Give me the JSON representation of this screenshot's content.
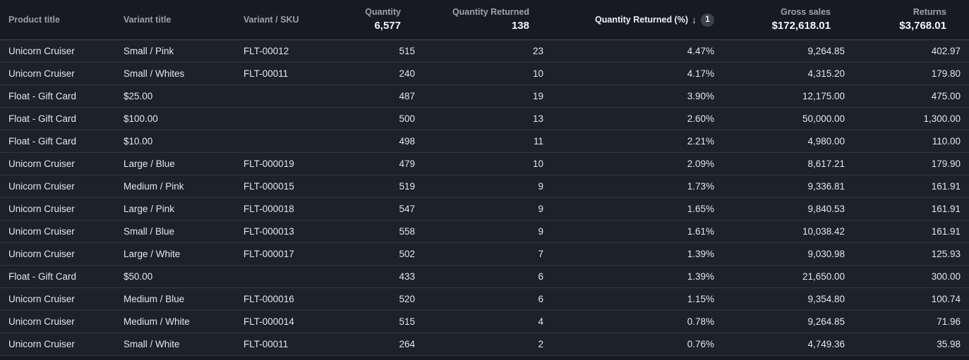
{
  "table": {
    "headers": {
      "product_title": "Product title",
      "variant_title": "Variant title",
      "variant_sku": "Variant / SKU",
      "quantity": {
        "label": "Quantity",
        "total": "6,577"
      },
      "quantity_returned": {
        "label": "Quantity Returned",
        "total": "138"
      },
      "quantity_returned_pct": {
        "label": "Quantity Returned (%)",
        "sort_icon": "↓",
        "sort_direction": "descending",
        "sort_badge": "1"
      },
      "gross_sales": {
        "label": "Gross sales",
        "total": "$172,618.01"
      },
      "returns": {
        "label": "Returns",
        "total": "$3,768.01"
      }
    },
    "rows": [
      {
        "product_title": "Unicorn Cruiser",
        "variant_title": "Small / Pink",
        "variant_sku": "FLT-00012",
        "quantity": "515",
        "quantity_returned": "23",
        "quantity_returned_pct": "4.47%",
        "gross_sales": "9,264.85",
        "returns": "402.97"
      },
      {
        "product_title": "Unicorn Cruiser",
        "variant_title": "Small / Whites",
        "variant_sku": "FLT-00011",
        "quantity": "240",
        "quantity_returned": "10",
        "quantity_returned_pct": "4.17%",
        "gross_sales": "4,315.20",
        "returns": "179.80"
      },
      {
        "product_title": "Float - Gift Card",
        "variant_title": "$25.00",
        "variant_sku": "",
        "quantity": "487",
        "quantity_returned": "19",
        "quantity_returned_pct": "3.90%",
        "gross_sales": "12,175.00",
        "returns": "475.00"
      },
      {
        "product_title": "Float - Gift Card",
        "variant_title": "$100.00",
        "variant_sku": "",
        "quantity": "500",
        "quantity_returned": "13",
        "quantity_returned_pct": "2.60%",
        "gross_sales": "50,000.00",
        "returns": "1,300.00"
      },
      {
        "product_title": "Float - Gift Card",
        "variant_title": "$10.00",
        "variant_sku": "",
        "quantity": "498",
        "quantity_returned": "11",
        "quantity_returned_pct": "2.21%",
        "gross_sales": "4,980.00",
        "returns": "110.00"
      },
      {
        "product_title": "Unicorn Cruiser",
        "variant_title": "Large / Blue",
        "variant_sku": "FLT-000019",
        "quantity": "479",
        "quantity_returned": "10",
        "quantity_returned_pct": "2.09%",
        "gross_sales": "8,617.21",
        "returns": "179.90"
      },
      {
        "product_title": "Unicorn Cruiser",
        "variant_title": "Medium / Pink",
        "variant_sku": "FLT-000015",
        "quantity": "519",
        "quantity_returned": "9",
        "quantity_returned_pct": "1.73%",
        "gross_sales": "9,336.81",
        "returns": "161.91"
      },
      {
        "product_title": "Unicorn Cruiser",
        "variant_title": "Large / Pink",
        "variant_sku": "FLT-000018",
        "quantity": "547",
        "quantity_returned": "9",
        "quantity_returned_pct": "1.65%",
        "gross_sales": "9,840.53",
        "returns": "161.91"
      },
      {
        "product_title": "Unicorn Cruiser",
        "variant_title": "Small / Blue",
        "variant_sku": "FLT-000013",
        "quantity": "558",
        "quantity_returned": "9",
        "quantity_returned_pct": "1.61%",
        "gross_sales": "10,038.42",
        "returns": "161.91"
      },
      {
        "product_title": "Unicorn Cruiser",
        "variant_title": "Large / White",
        "variant_sku": "FLT-000017",
        "quantity": "502",
        "quantity_returned": "7",
        "quantity_returned_pct": "1.39%",
        "gross_sales": "9,030.98",
        "returns": "125.93"
      },
      {
        "product_title": "Float - Gift Card",
        "variant_title": "$50.00",
        "variant_sku": "",
        "quantity": "433",
        "quantity_returned": "6",
        "quantity_returned_pct": "1.39%",
        "gross_sales": "21,650.00",
        "returns": "300.00"
      },
      {
        "product_title": "Unicorn Cruiser",
        "variant_title": "Medium / Blue",
        "variant_sku": "FLT-000016",
        "quantity": "520",
        "quantity_returned": "6",
        "quantity_returned_pct": "1.15%",
        "gross_sales": "9,354.80",
        "returns": "100.74"
      },
      {
        "product_title": "Unicorn Cruiser",
        "variant_title": "Medium / White",
        "variant_sku": "FLT-000014",
        "quantity": "515",
        "quantity_returned": "4",
        "quantity_returned_pct": "0.78%",
        "gross_sales": "9,264.85",
        "returns": "71.96"
      },
      {
        "product_title": "Unicorn Cruiser",
        "variant_title": "Small / White",
        "variant_sku": "FLT-00011",
        "quantity": "264",
        "quantity_returned": "2",
        "quantity_returned_pct": "0.76%",
        "gross_sales": "4,749.36",
        "returns": "35.98"
      }
    ]
  },
  "colors": {
    "header_bg": "#171a21",
    "row_bg": "#1d212a",
    "header_separator": "#3f4551",
    "row_separator": "#313744",
    "header_label": "#9ba1ab",
    "total_text": "#f3f4f6",
    "row_text": "#e4e6e9",
    "sort_badge_bg": "#3c424e"
  }
}
